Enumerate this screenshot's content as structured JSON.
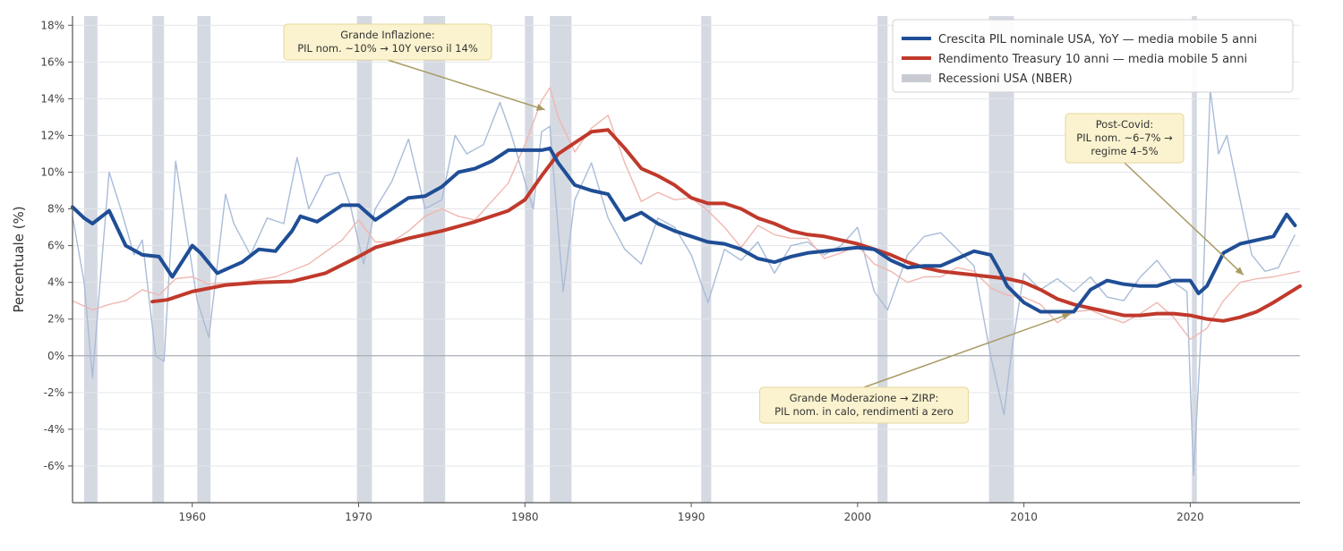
{
  "chart_data": {
    "type": "line",
    "title": "",
    "xlabel": "",
    "ylabel": "Percentuale (%)",
    "xlim": [
      1952.8,
      2026.6
    ],
    "ylim": [
      -8,
      18.5
    ],
    "x_ticks": [
      1960,
      1970,
      1980,
      1990,
      2000,
      2010,
      2020
    ],
    "y_ticks": [
      -6,
      -4,
      -2,
      0,
      2,
      4,
      6,
      8,
      10,
      12,
      14,
      16,
      18
    ],
    "y_tick_labels": [
      "-6%",
      "-4%",
      "-2%",
      "0%",
      "2%",
      "4%",
      "6%",
      "8%",
      "10%",
      "12%",
      "14%",
      "16%",
      "18%"
    ],
    "grid": "horizontal",
    "zero_line": true,
    "legend_position": "top-right",
    "colors": {
      "gdp": "#1f4e96",
      "gdp_raw": "#a9bcd8",
      "treasury": "#c0392b",
      "treasury_raw": "#f0b7b0",
      "recession": "#d5d9e2",
      "annotation_bg": "#fbf3cf",
      "annotation_border": "#e6d79a",
      "arrow": "#a89a63"
    },
    "legend": [
      {
        "label": "Crescita PIL nominale USA, YoY — media mobile 5 anni",
        "kind": "line",
        "color": "#1f4e96"
      },
      {
        "label": "Rendimento Treasury 10 anni — media mobile 5 anni",
        "kind": "line",
        "color": "#c0392b"
      },
      {
        "label": "Recessioni USA (NBER)",
        "kind": "band",
        "color": "#c8ccd2"
      }
    ],
    "recessions": [
      [
        1953.5,
        1954.3
      ],
      [
        1957.6,
        1958.3
      ],
      [
        1960.3,
        1961.1
      ],
      [
        1969.9,
        1970.8
      ],
      [
        1973.9,
        1975.2
      ],
      [
        1980.0,
        1980.5
      ],
      [
        1981.5,
        1982.8
      ],
      [
        1990.6,
        1991.2
      ],
      [
        2001.2,
        2001.8
      ],
      [
        2007.9,
        2009.4
      ],
      [
        2020.1,
        2020.4
      ]
    ],
    "series": [
      {
        "name": "Crescita PIL nominale USA, YoY — media mobile 5 anni",
        "x": [
          1952.8,
          1953.5,
          1954,
          1955,
          1956,
          1957,
          1958,
          1958.8,
          1960,
          1960.5,
          1961.5,
          1962,
          1963,
          1964,
          1965,
          1966,
          1966.5,
          1967.5,
          1968,
          1969,
          1970,
          1970.5,
          1971,
          1972,
          1973,
          1974,
          1975,
          1976,
          1977,
          1978,
          1979,
          1980,
          1981,
          1981.5,
          1982,
          1983,
          1984,
          1985,
          1986,
          1987,
          1988,
          1989,
          1990,
          1991,
          1992,
          1993,
          1994,
          1995,
          1996,
          1997,
          1998,
          1999,
          2000,
          2001,
          2002,
          2003,
          2004,
          2005,
          2006,
          2007,
          2008,
          2008.5,
          2009,
          2010,
          2011,
          2012,
          2013,
          2014,
          2015,
          2016,
          2017,
          2018,
          2019,
          2020,
          2020.5,
          2021,
          2022,
          2023,
          2024,
          2025,
          2025.8,
          2026.3
        ],
        "values": [
          8.1,
          7.5,
          7.2,
          7.9,
          6.0,
          5.5,
          5.4,
          4.3,
          6.0,
          5.6,
          4.5,
          4.7,
          5.1,
          5.8,
          5.7,
          6.8,
          7.6,
          7.3,
          7.6,
          8.2,
          8.2,
          7.8,
          7.4,
          8.0,
          8.6,
          8.7,
          9.2,
          10.0,
          10.2,
          10.6,
          11.2,
          11.2,
          11.2,
          11.3,
          10.5,
          9.3,
          9.0,
          8.8,
          7.4,
          7.8,
          7.2,
          6.8,
          6.5,
          6.2,
          6.1,
          5.8,
          5.3,
          5.1,
          5.4,
          5.6,
          5.7,
          5.8,
          5.9,
          5.8,
          5.2,
          4.8,
          4.9,
          4.9,
          5.3,
          5.7,
          5.5,
          4.7,
          3.8,
          2.9,
          2.4,
          2.4,
          2.4,
          3.6,
          4.1,
          3.9,
          3.8,
          3.8,
          4.1,
          4.1,
          3.4,
          3.8,
          5.6,
          6.1,
          6.3,
          6.5,
          7.7,
          7.1
        ]
      },
      {
        "name": "Rendimento Treasury 10 anni — media mobile 5 anni",
        "x": [
          1957.6,
          1958.5,
          1960,
          1962,
          1964,
          1966,
          1968,
          1970,
          1971,
          1973,
          1975,
          1977,
          1979,
          1980,
          1981,
          1982,
          1983,
          1984,
          1985,
          1986,
          1987,
          1988,
          1989,
          1990,
          1991,
          1992,
          1993,
          1994,
          1995,
          1996,
          1997,
          1998,
          1999,
          2000,
          2001,
          2002,
          2003,
          2004,
          2005,
          2006,
          2007,
          2008,
          2009,
          2010,
          2011,
          2012,
          2013,
          2014,
          2015,
          2016,
          2017,
          2018,
          2019,
          2020,
          2021,
          2022,
          2023,
          2024,
          2025,
          2026.6
        ],
        "values": [
          2.95,
          3.05,
          3.5,
          3.85,
          4.0,
          4.05,
          4.5,
          5.4,
          5.9,
          6.4,
          6.8,
          7.3,
          7.9,
          8.5,
          9.8,
          11.0,
          11.6,
          12.2,
          12.3,
          11.3,
          10.2,
          9.8,
          9.3,
          8.6,
          8.3,
          8.3,
          8.0,
          7.5,
          7.2,
          6.8,
          6.6,
          6.5,
          6.3,
          6.1,
          5.8,
          5.5,
          5.1,
          4.8,
          4.6,
          4.5,
          4.4,
          4.3,
          4.2,
          4.0,
          3.6,
          3.1,
          2.8,
          2.6,
          2.4,
          2.2,
          2.2,
          2.3,
          2.3,
          2.2,
          2.0,
          1.9,
          2.1,
          2.4,
          2.9,
          3.8
        ]
      },
      {
        "name": "",
        "x": [
          1952.8,
          1953.5,
          1954,
          1954.5,
          1955,
          1955.7,
          1956.5,
          1957,
          1957.8,
          1958.3,
          1959,
          1959.7,
          1960.3,
          1961,
          1962,
          1962.5,
          1963.5,
          1964.5,
          1965.5,
          1966.3,
          1967,
          1968,
          1968.8,
          1969.5,
          1970.3,
          1971,
          1972,
          1973,
          1974,
          1975,
          1975.8,
          1976.5,
          1977.5,
          1978.5,
          1979.2,
          1980,
          1980.5,
          1981,
          1981.5,
          1982.3,
          1983,
          1984,
          1985,
          1986,
          1987,
          1988,
          1989,
          1990,
          1991,
          1992,
          1993,
          1994,
          1995,
          1996,
          1997,
          1998,
          1999,
          2000,
          2001,
          2001.8,
          2003,
          2004,
          2005,
          2006,
          2007,
          2008,
          2008.8,
          2009.3,
          2010,
          2011,
          2012,
          2013,
          2014,
          2015,
          2016,
          2017,
          2018,
          2019,
          2019.8,
          2020.2,
          2020.7,
          2021.2,
          2021.7,
          2022.2,
          2023,
          2023.7,
          2024.5,
          2025.3,
          2026.3
        ],
        "values": [
          7.6,
          4.0,
          -1.2,
          4.5,
          10.0,
          8.0,
          5.5,
          6.3,
          0.0,
          -0.3,
          10.6,
          6.5,
          3.0,
          1.0,
          8.8,
          7.2,
          5.5,
          7.5,
          7.2,
          10.8,
          8.0,
          9.8,
          10.0,
          8.2,
          5.0,
          8.0,
          9.5,
          11.8,
          8.0,
          8.5,
          12.0,
          11.0,
          11.5,
          13.8,
          12.0,
          9.5,
          8.0,
          12.2,
          12.5,
          3.5,
          8.5,
          10.5,
          7.5,
          5.8,
          5.0,
          7.5,
          7.0,
          5.5,
          2.9,
          5.8,
          5.2,
          6.2,
          4.5,
          6.0,
          6.2,
          5.5,
          6.0,
          7.0,
          3.5,
          2.5,
          5.5,
          6.5,
          6.7,
          5.8,
          4.9,
          0.0,
          -3.2,
          0.5,
          4.5,
          3.6,
          4.2,
          3.5,
          4.3,
          3.2,
          3.0,
          4.3,
          5.2,
          4.0,
          3.5,
          -6.5,
          2.0,
          14.5,
          11.0,
          12.0,
          8.5,
          5.5,
          4.6,
          4.8,
          6.6
        ]
      },
      {
        "name": "",
        "x": [
          1952.8,
          1954,
          1955,
          1956,
          1957,
          1958,
          1959,
          1960,
          1961,
          1963,
          1965,
          1967,
          1969,
          1970,
          1971,
          1972,
          1973,
          1974,
          1975,
          1976,
          1977,
          1978,
          1979,
          1980,
          1981,
          1981.5,
          1982,
          1983,
          1984,
          1985,
          1986,
          1987,
          1988,
          1989,
          1990,
          1991,
          1992,
          1993,
          1994,
          1995,
          1996,
          1997,
          1998,
          1999,
          2000,
          2001,
          2002,
          2003,
          2004,
          2005,
          2006,
          2007,
          2008,
          2009,
          2010,
          2011,
          2012,
          2013,
          2014,
          2015,
          2016,
          2017,
          2018,
          2019,
          2020,
          2021,
          2022,
          2023,
          2024,
          2025,
          2026.6
        ],
        "values": [
          3.0,
          2.5,
          2.8,
          3.0,
          3.6,
          3.3,
          4.2,
          4.3,
          3.9,
          4.0,
          4.3,
          5.0,
          6.3,
          7.4,
          6.2,
          6.2,
          6.8,
          7.6,
          8.0,
          7.6,
          7.4,
          8.4,
          9.4,
          11.5,
          13.9,
          14.6,
          13.0,
          11.1,
          12.4,
          13.1,
          10.5,
          8.4,
          8.9,
          8.5,
          8.6,
          7.9,
          7.0,
          5.9,
          7.1,
          6.6,
          6.4,
          6.4,
          5.3,
          5.6,
          6.0,
          5.0,
          4.6,
          4.0,
          4.3,
          4.3,
          4.8,
          4.6,
          3.7,
          3.3,
          3.2,
          2.8,
          1.8,
          2.4,
          2.5,
          2.1,
          1.8,
          2.3,
          2.9,
          2.1,
          0.9,
          1.5,
          3.0,
          4.0,
          4.2,
          4.3,
          4.6
        ]
      }
    ],
    "annotations": [
      {
        "lines": [
          "Grande Inflazione:",
          "PIL nom. ~10% → 10Y verso il 14%"
        ],
        "target": [
          1981.2,
          13.4
        ]
      },
      {
        "lines": [
          "Post-Covid:",
          "PIL nom. ~6–7% →",
          "regime 4–5%"
        ],
        "target": [
          2023.2,
          4.4
        ]
      },
      {
        "lines": [
          "Grande Moderazione → ZIRP:",
          "PIL nom. in calo, rendimenti a zero"
        ],
        "target": [
          2012.8,
          2.3
        ]
      }
    ]
  }
}
